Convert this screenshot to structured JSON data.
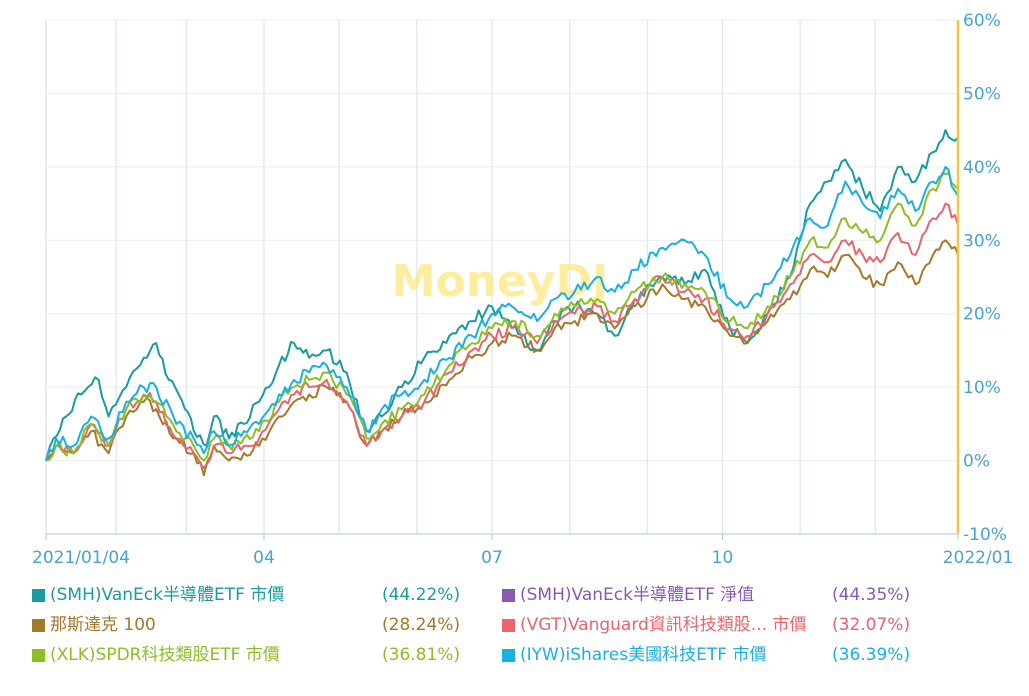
{
  "chart_data": {
    "type": "line",
    "watermark": "MoneyDJ",
    "x_tick_labels": [
      "2021/01/04",
      "04",
      "07",
      "10",
      "2022/01"
    ],
    "y_tick_labels": [
      "60%",
      "50%",
      "40%",
      "30%",
      "20%",
      "10%",
      "0%",
      "-10%"
    ],
    "ylim": [
      -10,
      60
    ],
    "xlim": [
      "2021-01-04",
      "2022-01-03"
    ],
    "y_axis_side": "right",
    "grid": true,
    "series": [
      {
        "name": "(SMH)VanEck半導體ETF 市價",
        "return": "(44.22%)",
        "color": "#1A9BA0",
        "points": [
          [
            "2021-01-04",
            0
          ],
          [
            "2021-01-07",
            3
          ],
          [
            "2021-01-12",
            6
          ],
          [
            "2021-01-18",
            9
          ],
          [
            "2021-01-25",
            11
          ],
          [
            "2021-01-29",
            6
          ],
          [
            "2021-02-05",
            10
          ],
          [
            "2021-02-12",
            14
          ],
          [
            "2021-02-17",
            16
          ],
          [
            "2021-02-22",
            11
          ],
          [
            "2021-02-26",
            9
          ],
          [
            "2021-03-04",
            4
          ],
          [
            "2021-03-09",
            2
          ],
          [
            "2021-03-12",
            6
          ],
          [
            "2021-03-18",
            3
          ],
          [
            "2021-03-24",
            5
          ],
          [
            "2021-03-30",
            8
          ],
          [
            "2021-04-07",
            13
          ],
          [
            "2021-04-13",
            16
          ],
          [
            "2021-04-19",
            14
          ],
          [
            "2021-04-26",
            15
          ],
          [
            "2021-05-04",
            12
          ],
          [
            "2021-05-12",
            4
          ],
          [
            "2021-05-18",
            6
          ],
          [
            "2021-05-26",
            10
          ],
          [
            "2021-06-04",
            14
          ],
          [
            "2021-06-14",
            17
          ],
          [
            "2021-06-23",
            19
          ],
          [
            "2021-07-01",
            21
          ],
          [
            "2021-07-09",
            18
          ],
          [
            "2021-07-19",
            15
          ],
          [
            "2021-07-26",
            19
          ],
          [
            "2021-08-03",
            21
          ],
          [
            "2021-08-12",
            20
          ],
          [
            "2021-08-19",
            17
          ],
          [
            "2021-08-27",
            22
          ],
          [
            "2021-09-07",
            25
          ],
          [
            "2021-09-16",
            24
          ],
          [
            "2021-09-24",
            26
          ],
          [
            "2021-10-04",
            18
          ],
          [
            "2021-10-11",
            16
          ],
          [
            "2021-10-19",
            20
          ],
          [
            "2021-10-28",
            25
          ],
          [
            "2021-11-05",
            35
          ],
          [
            "2021-11-12",
            38
          ],
          [
            "2021-11-19",
            41
          ],
          [
            "2021-11-26",
            37
          ],
          [
            "2021-12-03",
            34
          ],
          [
            "2021-12-10",
            40
          ],
          [
            "2021-12-17",
            38
          ],
          [
            "2021-12-24",
            42
          ],
          [
            "2021-12-29",
            45
          ],
          [
            "2022-01-03",
            44
          ]
        ]
      },
      {
        "name": "(SMH)VanEck半導體ETF 淨值",
        "return": "(44.35%)",
        "color": "#8A5AB0",
        "points": []
      },
      {
        "name": "那斯達克 100",
        "return": "(28.24%)",
        "color": "#A5782A",
        "points": [
          [
            "2021-01-04",
            0
          ],
          [
            "2021-01-08",
            2
          ],
          [
            "2021-01-15",
            1
          ],
          [
            "2021-01-22",
            4
          ],
          [
            "2021-01-29",
            1
          ],
          [
            "2021-02-05",
            6
          ],
          [
            "2021-02-12",
            8
          ],
          [
            "2021-02-17",
            7
          ],
          [
            "2021-02-25",
            3
          ],
          [
            "2021-03-04",
            1
          ],
          [
            "2021-03-08",
            -2
          ],
          [
            "2021-03-12",
            2
          ],
          [
            "2021-03-18",
            0
          ],
          [
            "2021-03-24",
            1
          ],
          [
            "2021-03-30",
            2
          ],
          [
            "2021-04-07",
            6
          ],
          [
            "2021-04-13",
            8
          ],
          [
            "2021-04-19",
            9
          ],
          [
            "2021-04-26",
            10
          ],
          [
            "2021-05-04",
            8
          ],
          [
            "2021-05-12",
            2
          ],
          [
            "2021-05-18",
            4
          ],
          [
            "2021-05-26",
            6
          ],
          [
            "2021-06-04",
            8
          ],
          [
            "2021-06-14",
            11
          ],
          [
            "2021-06-23",
            14
          ],
          [
            "2021-07-01",
            16
          ],
          [
            "2021-07-09",
            17
          ],
          [
            "2021-07-19",
            15
          ],
          [
            "2021-07-26",
            18
          ],
          [
            "2021-08-03",
            19
          ],
          [
            "2021-08-12",
            20
          ],
          [
            "2021-08-19",
            18
          ],
          [
            "2021-08-27",
            21
          ],
          [
            "2021-09-07",
            24
          ],
          [
            "2021-09-16",
            22
          ],
          [
            "2021-09-24",
            21
          ],
          [
            "2021-10-04",
            17
          ],
          [
            "2021-10-11",
            16
          ],
          [
            "2021-10-19",
            19
          ],
          [
            "2021-10-28",
            22
          ],
          [
            "2021-11-05",
            26
          ],
          [
            "2021-11-12",
            25
          ],
          [
            "2021-11-19",
            28
          ],
          [
            "2021-11-26",
            25
          ],
          [
            "2021-12-03",
            24
          ],
          [
            "2021-12-10",
            27
          ],
          [
            "2021-12-17",
            24
          ],
          [
            "2021-12-24",
            28
          ],
          [
            "2021-12-29",
            30
          ],
          [
            "2022-01-03",
            28
          ]
        ]
      },
      {
        "name": "(VGT)Vanguard資訊科技類股... 市價",
        "return": "(32.07%)",
        "color": "#E8646E",
        "points": [
          [
            "2021-01-04",
            0
          ],
          [
            "2021-01-08",
            2
          ],
          [
            "2021-01-15",
            1
          ],
          [
            "2021-01-22",
            5
          ],
          [
            "2021-01-29",
            2
          ],
          [
            "2021-02-05",
            7
          ],
          [
            "2021-02-12",
            9
          ],
          [
            "2021-02-17",
            8
          ],
          [
            "2021-02-25",
            3
          ],
          [
            "2021-03-04",
            1
          ],
          [
            "2021-03-08",
            -1
          ],
          [
            "2021-03-12",
            2
          ],
          [
            "2021-03-18",
            1
          ],
          [
            "2021-03-24",
            2
          ],
          [
            "2021-03-30",
            3
          ],
          [
            "2021-04-07",
            7
          ],
          [
            "2021-04-13",
            9
          ],
          [
            "2021-04-19",
            10
          ],
          [
            "2021-04-26",
            11
          ],
          [
            "2021-05-04",
            8
          ],
          [
            "2021-05-12",
            2
          ],
          [
            "2021-05-18",
            4
          ],
          [
            "2021-05-26",
            6
          ],
          [
            "2021-06-04",
            8
          ],
          [
            "2021-06-14",
            12
          ],
          [
            "2021-06-23",
            15
          ],
          [
            "2021-07-01",
            17
          ],
          [
            "2021-07-09",
            18
          ],
          [
            "2021-07-19",
            16
          ],
          [
            "2021-07-26",
            19
          ],
          [
            "2021-08-03",
            20
          ],
          [
            "2021-08-12",
            21
          ],
          [
            "2021-08-19",
            19
          ],
          [
            "2021-08-27",
            22
          ],
          [
            "2021-09-07",
            25
          ],
          [
            "2021-09-16",
            23
          ],
          [
            "2021-09-24",
            22
          ],
          [
            "2021-10-04",
            18
          ],
          [
            "2021-10-11",
            17
          ],
          [
            "2021-10-19",
            20
          ],
          [
            "2021-10-28",
            24
          ],
          [
            "2021-11-05",
            28
          ],
          [
            "2021-11-12",
            27
          ],
          [
            "2021-11-19",
            30
          ],
          [
            "2021-11-26",
            28
          ],
          [
            "2021-12-03",
            27
          ],
          [
            "2021-12-10",
            31
          ],
          [
            "2021-12-17",
            28
          ],
          [
            "2021-12-24",
            33
          ],
          [
            "2021-12-29",
            35
          ],
          [
            "2022-01-03",
            32
          ]
        ]
      },
      {
        "name": "(XLK)SPDR科技類股ETF 市價",
        "return": "(36.81%)",
        "color": "#8CBF26",
        "points": [
          [
            "2021-01-04",
            0
          ],
          [
            "2021-01-08",
            2
          ],
          [
            "2021-01-15",
            1
          ],
          [
            "2021-01-22",
            5
          ],
          [
            "2021-01-29",
            2
          ],
          [
            "2021-02-05",
            7
          ],
          [
            "2021-02-12",
            9
          ],
          [
            "2021-02-17",
            8
          ],
          [
            "2021-02-25",
            4
          ],
          [
            "2021-03-04",
            2
          ],
          [
            "2021-03-08",
            0
          ],
          [
            "2021-03-12",
            3
          ],
          [
            "2021-03-18",
            2
          ],
          [
            "2021-03-24",
            3
          ],
          [
            "2021-03-30",
            4
          ],
          [
            "2021-04-07",
            8
          ],
          [
            "2021-04-13",
            10
          ],
          [
            "2021-04-19",
            11
          ],
          [
            "2021-04-26",
            12
          ],
          [
            "2021-05-04",
            9
          ],
          [
            "2021-05-12",
            3
          ],
          [
            "2021-05-18",
            5
          ],
          [
            "2021-05-26",
            7
          ],
          [
            "2021-06-04",
            9
          ],
          [
            "2021-06-14",
            13
          ],
          [
            "2021-06-23",
            16
          ],
          [
            "2021-07-01",
            18
          ],
          [
            "2021-07-09",
            19
          ],
          [
            "2021-07-19",
            17
          ],
          [
            "2021-07-26",
            20
          ],
          [
            "2021-08-03",
            21
          ],
          [
            "2021-08-12",
            22
          ],
          [
            "2021-08-19",
            20
          ],
          [
            "2021-08-27",
            23
          ],
          [
            "2021-09-07",
            25
          ],
          [
            "2021-09-16",
            24
          ],
          [
            "2021-09-24",
            23
          ],
          [
            "2021-10-04",
            19
          ],
          [
            "2021-10-11",
            18
          ],
          [
            "2021-10-19",
            21
          ],
          [
            "2021-10-28",
            25
          ],
          [
            "2021-11-05",
            30
          ],
          [
            "2021-11-12",
            29
          ],
          [
            "2021-11-19",
            33
          ],
          [
            "2021-11-26",
            31
          ],
          [
            "2021-12-03",
            30
          ],
          [
            "2021-12-10",
            35
          ],
          [
            "2021-12-17",
            32
          ],
          [
            "2021-12-24",
            37
          ],
          [
            "2021-12-29",
            39
          ],
          [
            "2022-01-03",
            37
          ]
        ]
      },
      {
        "name": "(IYW)iShares美國科技ETF 市價",
        "return": "(36.39%)",
        "color": "#1AB0E0",
        "points": [
          [
            "2021-01-04",
            0
          ],
          [
            "2021-01-08",
            3
          ],
          [
            "2021-01-15",
            2
          ],
          [
            "2021-01-22",
            6
          ],
          [
            "2021-01-29",
            3
          ],
          [
            "2021-02-05",
            8
          ],
          [
            "2021-02-12",
            10
          ],
          [
            "2021-02-17",
            10
          ],
          [
            "2021-02-25",
            5
          ],
          [
            "2021-03-04",
            3
          ],
          [
            "2021-03-08",
            1
          ],
          [
            "2021-03-12",
            4
          ],
          [
            "2021-03-18",
            2
          ],
          [
            "2021-03-24",
            4
          ],
          [
            "2021-03-30",
            5
          ],
          [
            "2021-04-07",
            9
          ],
          [
            "2021-04-13",
            11
          ],
          [
            "2021-04-19",
            12
          ],
          [
            "2021-04-26",
            13
          ],
          [
            "2021-05-04",
            10
          ],
          [
            "2021-05-12",
            4
          ],
          [
            "2021-05-18",
            7
          ],
          [
            "2021-05-26",
            9
          ],
          [
            "2021-06-04",
            11
          ],
          [
            "2021-06-14",
            14
          ],
          [
            "2021-06-23",
            17
          ],
          [
            "2021-07-01",
            20
          ],
          [
            "2021-07-09",
            21
          ],
          [
            "2021-07-19",
            19
          ],
          [
            "2021-07-26",
            22
          ],
          [
            "2021-08-03",
            23
          ],
          [
            "2021-08-12",
            25
          ],
          [
            "2021-08-19",
            23
          ],
          [
            "2021-08-27",
            26
          ],
          [
            "2021-09-07",
            29
          ],
          [
            "2021-09-16",
            30
          ],
          [
            "2021-09-24",
            28
          ],
          [
            "2021-10-04",
            22
          ],
          [
            "2021-10-11",
            21
          ],
          [
            "2021-10-19",
            24
          ],
          [
            "2021-10-28",
            28
          ],
          [
            "2021-11-05",
            33
          ],
          [
            "2021-11-12",
            32
          ],
          [
            "2021-11-19",
            38
          ],
          [
            "2021-11-26",
            35
          ],
          [
            "2021-12-03",
            33
          ],
          [
            "2021-12-10",
            37
          ],
          [
            "2021-12-17",
            34
          ],
          [
            "2021-12-24",
            38
          ],
          [
            "2021-12-29",
            40
          ],
          [
            "2022-01-03",
            36
          ]
        ]
      }
    ]
  }
}
